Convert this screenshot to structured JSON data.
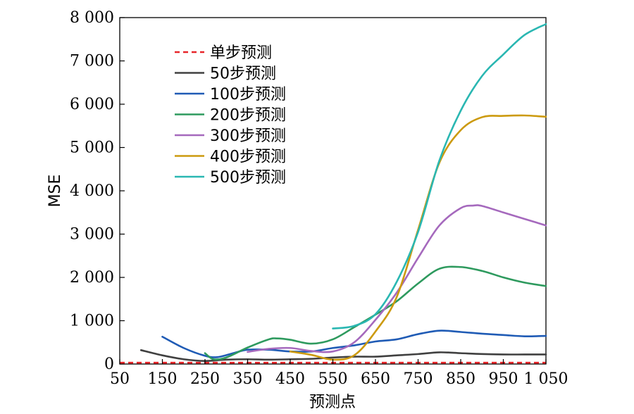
{
  "chart_data": {
    "type": "line",
    "xlabel": "预测点",
    "ylabel": "MSE",
    "xlim": [
      50,
      1050
    ],
    "ylim": [
      0,
      8000
    ],
    "x_ticks": [
      50,
      150,
      250,
      350,
      450,
      550,
      650,
      750,
      850,
      950,
      1050
    ],
    "x_tick_labels": [
      "50",
      "150",
      "250",
      "350",
      "450",
      "550",
      "650",
      "750",
      "850",
      "950",
      "1 050"
    ],
    "y_ticks": [
      0,
      1000,
      2000,
      3000,
      4000,
      5000,
      6000,
      7000,
      8000
    ],
    "y_tick_labels": [
      "0",
      "1 000",
      "2 000",
      "3 000",
      "4 000",
      "5 000",
      "6 000",
      "7 000",
      "8 000"
    ],
    "grid": false,
    "legend_position": "top-left",
    "series": [
      {
        "name": "单步预测",
        "color": "#e8262a",
        "dashed": true,
        "x": [
          50,
          1050
        ],
        "y": [
          30,
          30
        ]
      },
      {
        "name": "50步预测",
        "color": "#404040",
        "dashed": false,
        "x": [
          100,
          150,
          200,
          250,
          300,
          350,
          400,
          450,
          500,
          550,
          600,
          650,
          700,
          750,
          800,
          850,
          900,
          950,
          1000,
          1050
        ],
        "y": [
          320,
          200,
          110,
          70,
          100,
          110,
          100,
          110,
          120,
          150,
          170,
          170,
          200,
          230,
          270,
          250,
          230,
          220,
          220,
          220
        ]
      },
      {
        "name": "100步预测",
        "color": "#1f5bb5",
        "dashed": false,
        "x": [
          150,
          200,
          250,
          280,
          320,
          350,
          400,
          450,
          500,
          550,
          600,
          650,
          700,
          750,
          800,
          850,
          900,
          950,
          1000,
          1050
        ],
        "y": [
          630,
          370,
          190,
          160,
          260,
          330,
          330,
          290,
          290,
          370,
          430,
          520,
          570,
          690,
          770,
          740,
          700,
          670,
          640,
          650
        ]
      },
      {
        "name": "200步预测",
        "color": "#2e9a5e",
        "dashed": false,
        "x": [
          250,
          270,
          300,
          350,
          400,
          420,
          450,
          500,
          550,
          600,
          650,
          700,
          750,
          800,
          850,
          900,
          950,
          1000,
          1050
        ],
        "y": [
          250,
          110,
          150,
          380,
          570,
          590,
          560,
          470,
          570,
          850,
          1140,
          1450,
          1860,
          2200,
          2240,
          2150,
          2000,
          1880,
          1800
        ]
      },
      {
        "name": "300步预测",
        "color": "#a569bd",
        "dashed": false,
        "x": [
          350,
          400,
          450,
          500,
          550,
          600,
          650,
          700,
          750,
          800,
          850,
          880,
          900,
          950,
          1000,
          1050
        ],
        "y": [
          280,
          350,
          370,
          300,
          290,
          500,
          1020,
          1650,
          2450,
          3200,
          3600,
          3660,
          3650,
          3500,
          3350,
          3200
        ]
      },
      {
        "name": "400步预测",
        "color": "#cc9a0e",
        "dashed": false,
        "x": [
          450,
          500,
          550,
          600,
          650,
          700,
          750,
          800,
          850,
          900,
          950,
          1000,
          1050
        ],
        "y": [
          290,
          210,
          100,
          200,
          750,
          1550,
          3100,
          4650,
          5400,
          5700,
          5730,
          5740,
          5710
        ]
      },
      {
        "name": "500步预测",
        "color": "#2ab7b2",
        "dashed": false,
        "x": [
          550,
          600,
          650,
          700,
          750,
          800,
          850,
          900,
          950,
          1000,
          1050
        ],
        "y": [
          820,
          880,
          1150,
          1900,
          3050,
          4700,
          5850,
          6650,
          7150,
          7600,
          7850
        ]
      }
    ]
  }
}
